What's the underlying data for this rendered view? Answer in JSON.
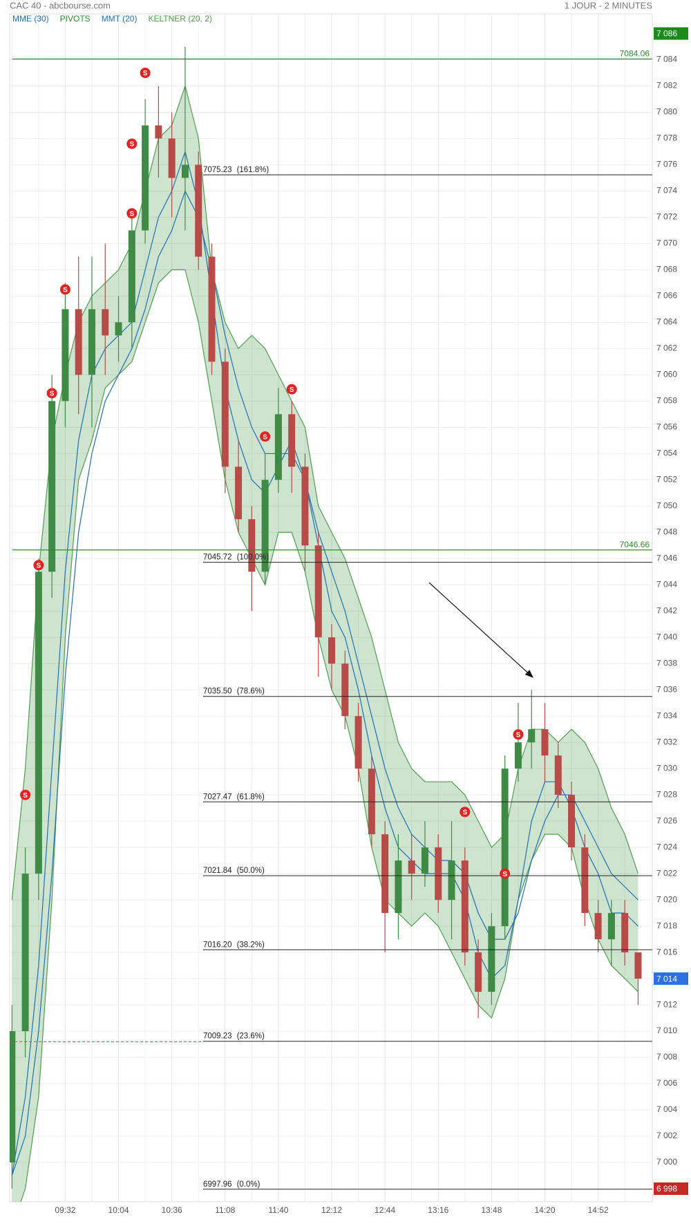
{
  "chart_data": {
    "type": "candlestick",
    "title": "CAC 40 - abcbourse.com",
    "subtitle": "1 JOUR - 2 MINUTES",
    "categories": [
      null,
      null,
      null,
      null,
      "09:32",
      null,
      null,
      null,
      "10:04",
      null,
      null,
      null,
      "10:36",
      null,
      null,
      null,
      "11:08",
      null,
      null,
      null,
      "11:40",
      null,
      null,
      null,
      "12:12",
      null,
      null,
      null,
      "12:44",
      null,
      null,
      null,
      "13:16",
      null,
      null,
      null,
      "13:48",
      null,
      null,
      null,
      "14:20",
      null,
      null,
      null,
      "14:52",
      null,
      null,
      null
    ],
    "open": [
      7000,
      7010,
      7022,
      7045,
      7058,
      7065,
      7060,
      7065,
      7063,
      7064,
      7071,
      7079,
      7078,
      7075,
      7076,
      7069,
      7061,
      7053,
      7049,
      7045,
      7052,
      7057,
      7053,
      7047,
      7040,
      7038,
      7034,
      7030,
      7025,
      7019,
      7023,
      7022,
      7024,
      7020,
      7023,
      7016,
      7013,
      7018,
      7030,
      7032,
      7033,
      7031,
      7028,
      7024,
      7019,
      7017,
      7019,
      7016
    ],
    "high": [
      7012,
      7024,
      7046,
      7060,
      7067,
      7069,
      7069,
      7070,
      7066,
      7072,
      7081,
      7082,
      7080,
      7085,
      7077,
      7070,
      7062,
      7055,
      7050,
      7054,
      7059,
      7058,
      7054,
      7048,
      7041,
      7039,
      7035,
      7031,
      7026,
      7025,
      7025,
      7026,
      7025,
      7026,
      7024,
      7017,
      7019,
      7031,
      7035,
      7036,
      7035,
      7032,
      7029,
      7025,
      7020,
      7020,
      7020,
      7016
    ],
    "low": [
      6998,
      7008,
      7020,
      7043,
      7056,
      7057,
      7056,
      7060,
      7061,
      7062,
      7070,
      7075,
      7072,
      7071,
      7068,
      7060,
      7051,
      7048,
      7042,
      7044,
      7051,
      7051,
      7045,
      7037,
      7036,
      7033,
      7029,
      7024,
      7016,
      7017,
      7020,
      7021,
      7019,
      7017,
      7015,
      7011,
      7012,
      7017,
      7029,
      7030,
      7029,
      7027,
      7023,
      7018,
      7016,
      7015,
      7015,
      7012
    ],
    "close": [
      7010,
      7022,
      7045,
      7058,
      7065,
      7060,
      7065,
      7063,
      7064,
      7071,
      7079,
      7078,
      7075,
      7076,
      7069,
      7061,
      7053,
      7049,
      7045,
      7052,
      7057,
      7053,
      7047,
      7040,
      7038,
      7034,
      7030,
      7025,
      7019,
      7023,
      7022,
      7024,
      7020,
      7023,
      7016,
      7013,
      7018,
      7030,
      7032,
      7033,
      7031,
      7028,
      7024,
      7019,
      7017,
      7019,
      7016,
      7014
    ],
    "up_color": "#3f8b45",
    "down_color": "#b84a48",
    "indicators": [
      {
        "name": "MME (30)",
        "color": "#1f6fb5",
        "values": [
          6999,
          7002,
          7010,
          7022,
          7037,
          7048,
          7054,
          7058,
          7060,
          7062,
          7065,
          7069,
          7071,
          7074,
          7072,
          7068,
          7063,
          7059,
          7056,
          7054,
          7054,
          7054,
          7052,
          7048,
          7045,
          7042,
          7038,
          7034,
          7030,
          7027,
          7025,
          7024,
          7023,
          7023,
          7022,
          7019,
          7017,
          7017,
          7019,
          7023,
          7026,
          7028,
          7028,
          7026,
          7024,
          7022,
          7021,
          7020
        ]
      },
      {
        "name": "PIVOTS",
        "color": "#2e8b2e",
        "levels": [
          7084.06,
          7046.66
        ]
      },
      {
        "name": "MMT (20)",
        "color": "#1f6fb5",
        "values": [
          6999,
          7005,
          7015,
          7030,
          7045,
          7055,
          7060,
          7062,
          7063,
          7064,
          7068,
          7072,
          7074,
          7077,
          7073,
          7066,
          7059,
          7055,
          7052,
          7051,
          7053,
          7055,
          7052,
          7047,
          7042,
          7040,
          7036,
          7031,
          7027,
          7024,
          7023,
          7022,
          7022,
          7022,
          7020,
          7016,
          7014,
          7015,
          7020,
          7026,
          7029,
          7029,
          7027,
          7024,
          7022,
          7019,
          7019,
          7018
        ]
      },
      {
        "name": "KELTNER (20, 2)",
        "color": "#4e9e4e",
        "upper": [
          7020,
          7030,
          7045,
          7055,
          7060,
          7064,
          7066,
          7067,
          7068,
          7070,
          7074,
          7078,
          7079,
          7082,
          7078,
          7068,
          7064,
          7062,
          7063,
          7062,
          7060,
          7058,
          7056,
          7050,
          7048,
          7046,
          7043,
          7040,
          7036,
          7032,
          7030,
          7029,
          7029,
          7029,
          7028,
          7026,
          7024,
          7025,
          7030,
          7033,
          7033,
          7032,
          7033,
          7032,
          7030,
          7027,
          7025,
          7022
        ],
        "lower": [
          6995,
          6998,
          7005,
          7020,
          7040,
          7052,
          7055,
          7059,
          7060,
          7061,
          7064,
          7067,
          7068,
          7068,
          7064,
          7058,
          7052,
          7048,
          7046,
          7044,
          7048,
          7048,
          7045,
          7040,
          7036,
          7034,
          7030,
          7024,
          7020,
          7019,
          7018,
          7019,
          7018,
          7016,
          7014,
          7012,
          7011,
          7014,
          7020,
          7023,
          7025,
          7025,
          7024,
          7020,
          7017,
          7015,
          7014,
          7013
        ]
      }
    ],
    "fibonacci": [
      {
        "value": 7075.23,
        "label": "7075.23",
        "ratio": "(161.8%)"
      },
      {
        "value": 7045.72,
        "label": "7045.72",
        "ratio": "(100.0%)"
      },
      {
        "value": 7035.5,
        "label": "7035.50",
        "ratio": "(78.6%)"
      },
      {
        "value": 7027.47,
        "label": "7027.47",
        "ratio": "(61.8%)"
      },
      {
        "value": 7021.84,
        "label": "7021.84",
        "ratio": "(50.0%)"
      },
      {
        "value": 7016.2,
        "label": "7016.20",
        "ratio": "(38.2%)"
      },
      {
        "value": 7009.23,
        "label": "7009.23",
        "ratio": "(23.6%)"
      },
      {
        "value": 6997.96,
        "label": "6997.96",
        "ratio": "(0.0%)"
      }
    ],
    "previous_close": 7009.2,
    "signals": {
      "label": "S",
      "index": [
        1,
        2,
        3,
        4,
        9,
        9,
        10,
        19,
        21,
        34,
        37,
        38
      ],
      "values": [
        7028,
        7045.5,
        7058.6,
        7066.5,
        7072.3,
        7077.6,
        7083,
        7055.3,
        7058.9,
        7026.7,
        7022,
        7032.6
      ]
    },
    "price_markers": [
      {
        "value": 7086,
        "label": "7 086",
        "color": "#1b8a1b"
      },
      {
        "value": 7014,
        "label": "7 014",
        "color": "#2f6fe4"
      },
      {
        "value": 6998,
        "label": "6 998",
        "color": "#c62828"
      }
    ],
    "ylim": [
      6997,
      7087.5
    ],
    "yticks": [
      {
        "value": 7000,
        "label": "7 000"
      },
      {
        "value": 7002,
        "label": "7 002"
      },
      {
        "value": 7004,
        "label": "7 004"
      },
      {
        "value": 7006,
        "label": "7 006"
      },
      {
        "value": 7008,
        "label": "7 008"
      },
      {
        "value": 7010,
        "label": "7 010"
      },
      {
        "value": 7012,
        "label": "7 012"
      },
      {
        "value": 7014,
        "label": "7 014"
      },
      {
        "value": 7016,
        "label": "7 016"
      },
      {
        "value": 7018,
        "label": "7 018"
      },
      {
        "value": 7020,
        "label": "7 020"
      },
      {
        "value": 7022,
        "label": "7 022"
      },
      {
        "value": 7024,
        "label": "7 024"
      },
      {
        "value": 7026,
        "label": "7 026"
      },
      {
        "value": 7028,
        "label": "7 028"
      },
      {
        "value": 7030,
        "label": "7 030"
      },
      {
        "value": 7032,
        "label": "7 032"
      },
      {
        "value": 7034,
        "label": "7 034"
      },
      {
        "value": 7036,
        "label": "7 036"
      },
      {
        "value": 7038,
        "label": "7 038"
      },
      {
        "value": 7040,
        "label": "7 040"
      },
      {
        "value": 7042,
        "label": "7 042"
      },
      {
        "value": 7044,
        "label": "7 044"
      },
      {
        "value": 7046,
        "label": "7 046"
      },
      {
        "value": 7048,
        "label": "7 048"
      },
      {
        "value": 7050,
        "label": "7 050"
      },
      {
        "value": 7052,
        "label": "7 052"
      },
      {
        "value": 7054,
        "label": "7 054"
      },
      {
        "value": 7056,
        "label": "7 056"
      },
      {
        "value": 7058,
        "label": "7 058"
      },
      {
        "value": 7060,
        "label": "7 060"
      },
      {
        "value": 7062,
        "label": "7 062"
      },
      {
        "value": 7064,
        "label": "7 064"
      },
      {
        "value": 7066,
        "label": "7 066"
      },
      {
        "value": 7068,
        "label": "7 068"
      },
      {
        "value": 7070,
        "label": "7 070"
      },
      {
        "value": 7072,
        "label": "7 072"
      },
      {
        "value": 7074,
        "label": "7 074"
      },
      {
        "value": 7076,
        "label": "7 076"
      },
      {
        "value": 7078,
        "label": "7 078"
      },
      {
        "value": 7080,
        "label": "7 080"
      },
      {
        "value": 7082,
        "label": "7 082"
      },
      {
        "value": 7084,
        "label": "7 084"
      }
    ],
    "grid": true
  }
}
